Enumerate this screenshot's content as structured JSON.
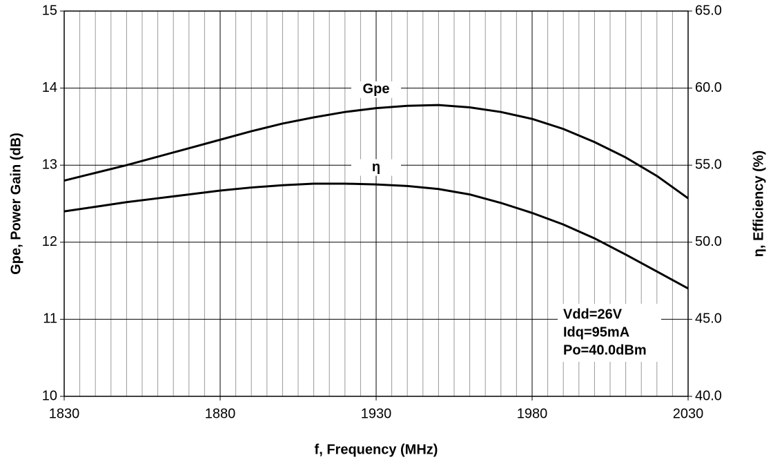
{
  "chart_data": {
    "type": "line",
    "xlabel": "f, Frequency (MHz)",
    "ylabel": "Gpe, Power Gain (dB)",
    "y2label": "η, Efficiency (%)",
    "x": [
      1830,
      1840,
      1850,
      1860,
      1870,
      1880,
      1890,
      1900,
      1910,
      1920,
      1930,
      1940,
      1950,
      1960,
      1970,
      1980,
      1990,
      2000,
      2010,
      2020,
      2030
    ],
    "series": [
      {
        "name": "Gpe",
        "color": "#000000",
        "values": [
          12.8,
          12.9,
          13.0,
          13.11,
          13.22,
          13.33,
          13.44,
          13.54,
          13.62,
          13.69,
          13.74,
          13.77,
          13.78,
          13.75,
          13.69,
          13.6,
          13.47,
          13.3,
          13.1,
          12.86,
          12.57
        ]
      },
      {
        "name": "η",
        "color": "#000000",
        "axis": "y2",
        "values": [
          52.0,
          52.3,
          52.6,
          52.85,
          53.1,
          53.35,
          53.55,
          53.7,
          53.8,
          53.8,
          53.75,
          53.65,
          53.45,
          53.1,
          52.55,
          51.9,
          51.15,
          50.25,
          49.2,
          48.1,
          47.0
        ]
      }
    ],
    "xlim": [
      1830,
      2030
    ],
    "xticks": [
      1830,
      1880,
      1930,
      1980,
      2030
    ],
    "ylim": [
      10,
      15
    ],
    "yticks": [
      10,
      11,
      12,
      13,
      14,
      15
    ],
    "y2lim": [
      40,
      65
    ],
    "y2ticks": [
      {
        "value": 40,
        "label": "40.0"
      },
      {
        "value": 45,
        "label": "45.0"
      },
      {
        "value": 50,
        "label": "50.0"
      },
      {
        "value": 55,
        "label": "55.0"
      },
      {
        "value": 60,
        "label": "60.0"
      },
      {
        "value": 65,
        "label": "65.0"
      }
    ],
    "grid": true,
    "annotations": [
      "Vdd=26V",
      "Idq=95mA",
      "Po=40.0dBm"
    ]
  }
}
